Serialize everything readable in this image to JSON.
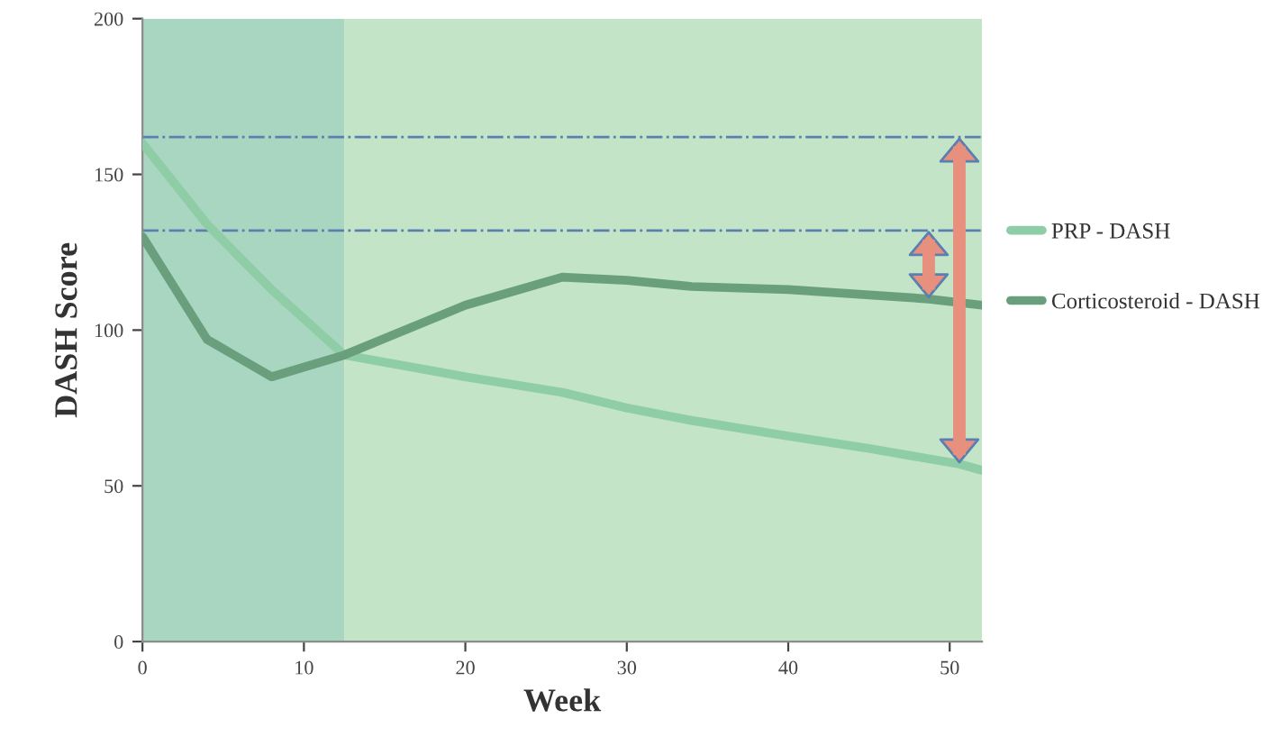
{
  "chart_data": {
    "type": "line",
    "xlabel": "Week",
    "ylabel": "DASH Score",
    "xlim": [
      0,
      52
    ],
    "ylim": [
      0,
      200
    ],
    "xticks": [
      0,
      10,
      20,
      30,
      40,
      50
    ],
    "yticks": [
      0,
      50,
      100,
      150,
      200
    ],
    "grid": false,
    "legend": "right",
    "line_style": "solid",
    "marker": "none",
    "series": [
      {
        "name": "PRP - DASH",
        "color": "#8ecda6",
        "x": [
          0,
          4,
          8,
          12.5,
          20,
          26,
          30,
          34,
          40,
          45,
          50.6,
          52
        ],
        "values": [
          160,
          134,
          113,
          92,
          85,
          80,
          75,
          71,
          66,
          62,
          57,
          55
        ]
      },
      {
        "name": "Corticosteroid - DASH",
        "color": "#6a9f7d",
        "x": [
          0,
          4,
          8,
          12.5,
          20,
          26,
          30,
          34,
          40,
          48.7,
          52
        ],
        "values": [
          130,
          97,
          85,
          92,
          108,
          117,
          116,
          114,
          113,
          110,
          108
        ]
      }
    ],
    "ref_lines": [
      {
        "axis": "y",
        "value": 162,
        "color": "#5b7fb0",
        "line_style": "dashdot"
      },
      {
        "axis": "y",
        "value": 132,
        "color": "#5b7fb0",
        "line_style": "dashdot"
      }
    ],
    "bands": [
      {
        "axis": "x",
        "from": 0,
        "to": 12.5,
        "color": "#a9d6c0"
      },
      {
        "axis": "x",
        "from": 12.5,
        "to": 52,
        "color": "#c3e4c6"
      }
    ]
  }
}
